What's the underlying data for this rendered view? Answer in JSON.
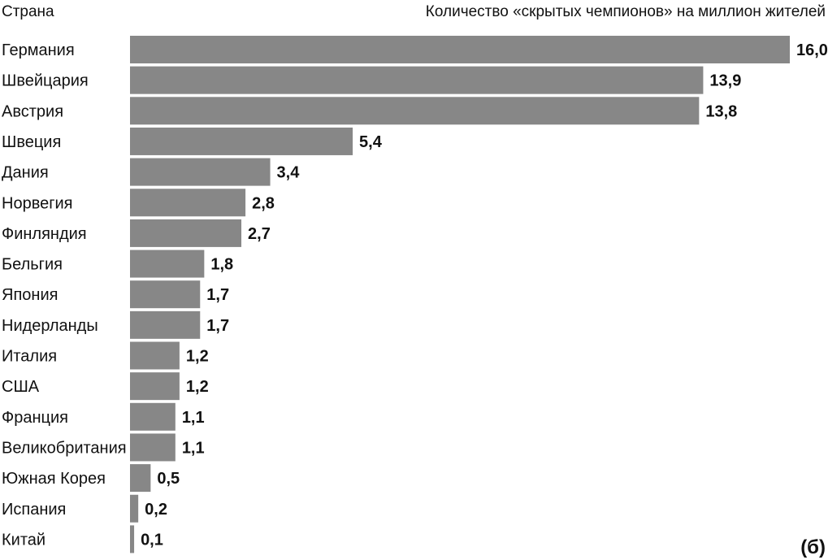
{
  "chart_data": {
    "type": "bar",
    "orientation": "horizontal",
    "category_header": "Страна",
    "value_header": "Количество «скрытых чемпионов» на миллион жителей",
    "panel_label": "(б)",
    "bar_color": "#878787",
    "categories": [
      "Германия",
      "Швейцария",
      "Австрия",
      "Швеция",
      "Дания",
      "Норвегия",
      "Финляндия",
      "Бельгия",
      "Япония",
      "Нидерланды",
      "Италия",
      "США",
      "Франция",
      "Великобритания",
      "Южная Корея",
      "Испания",
      "Китай"
    ],
    "values": [
      16.0,
      13.9,
      13.8,
      5.4,
      3.4,
      2.8,
      2.7,
      1.8,
      1.7,
      1.7,
      1.2,
      1.2,
      1.1,
      1.1,
      0.5,
      0.2,
      0.1
    ],
    "value_labels": [
      "16,0",
      "13,9",
      "13,8",
      "5,4",
      "3,4",
      "2,8",
      "2,7",
      "1,8",
      "1,7",
      "1,7",
      "1,2",
      "1,2",
      "1,1",
      "1,1",
      "0,5",
      "0,2",
      "0,1"
    ],
    "xlim": [
      0,
      16.0
    ],
    "grid": false,
    "legend": "none"
  }
}
